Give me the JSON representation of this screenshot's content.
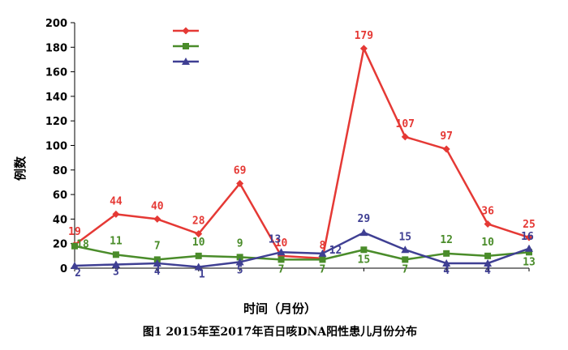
{
  "chart_data": {
    "type": "line",
    "categories": [
      "",
      "",
      "",
      "",
      "",
      "",
      "",
      "",
      "",
      "",
      "",
      ""
    ],
    "xlabel": "时间（月份）",
    "ylabel": "例数",
    "ylim": [
      0,
      200
    ],
    "yticks": [
      0,
      20,
      40,
      60,
      80,
      100,
      120,
      140,
      160,
      180,
      200
    ],
    "legend_position": "top-left",
    "grid": false,
    "series": [
      {
        "color": "#e53935",
        "marker": "diamond",
        "values": [
          19,
          44,
          40,
          28,
          69,
          10,
          8,
          179,
          107,
          97,
          36,
          25
        ]
      },
      {
        "color": "#4a8c2a",
        "marker": "square",
        "values": [
          18,
          11,
          7,
          10,
          9,
          7,
          7,
          15,
          7,
          12,
          10,
          13
        ]
      },
      {
        "color": "#3f3f93",
        "marker": "triangle",
        "values": [
          2,
          3,
          4,
          1,
          5,
          13,
          12,
          29,
          15,
          4,
          4,
          16
        ]
      }
    ]
  },
  "caption": "图1   2015年至2017年百日咳DNA阳性患儿月份分布"
}
